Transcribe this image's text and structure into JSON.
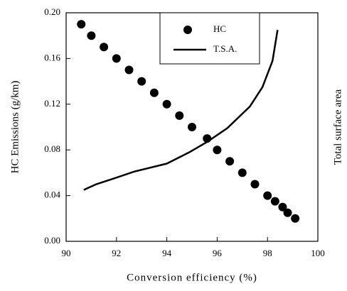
{
  "chart_data": {
    "type": "line",
    "x_label": "Conversion efficiency (%)",
    "y_label": "HC Emissions (g/km)",
    "y2_label": "Total surface area",
    "xlim": [
      90,
      100
    ],
    "xticks": [
      90,
      92,
      94,
      96,
      98,
      100
    ],
    "ylim": [
      0,
      0.2
    ],
    "yticks": [
      {
        "value": 0,
        "label": "0.00"
      },
      {
        "value": 0.04,
        "label": "0.04"
      },
      {
        "value": 0.08,
        "label": "0.08"
      },
      {
        "value": 0.12,
        "label": "0.12"
      },
      {
        "value": 0.16,
        "label": "0.16"
      },
      {
        "value": 0.2,
        "label": "0.20"
      }
    ],
    "legend": "top-right",
    "series": [
      {
        "name": "HC",
        "mark": "scatter",
        "color": "#000000",
        "x": [
          90.6,
          91.0,
          91.5,
          92.0,
          92.5,
          93.0,
          93.5,
          94.0,
          94.5,
          95.0,
          95.6,
          96.0,
          96.5,
          97.0,
          97.5,
          98.0,
          98.3,
          98.6,
          98.8,
          99.1
        ],
        "values": [
          0.19,
          0.18,
          0.17,
          0.16,
          0.15,
          0.14,
          0.13,
          0.12,
          0.11,
          0.1,
          0.09,
          0.08,
          0.07,
          0.06,
          0.05,
          0.04,
          0.035,
          0.03,
          0.025,
          0.02
        ]
      },
      {
        "name": "T.S.A.",
        "mark": "line",
        "color": "#000000",
        "x": [
          90.7,
          91.2,
          91.9,
          92.7,
          94.0,
          94.9,
          95.6,
          96.4,
          97.3,
          97.8,
          98.2,
          98.4
        ],
        "values": [
          0.045,
          0.05,
          0.055,
          0.061,
          0.068,
          0.078,
          0.087,
          0.099,
          0.118,
          0.135,
          0.158,
          0.185
        ]
      }
    ]
  }
}
